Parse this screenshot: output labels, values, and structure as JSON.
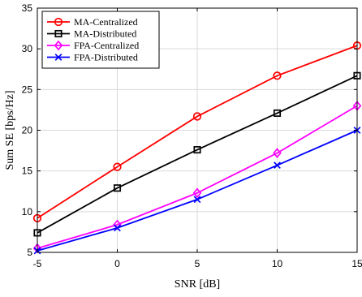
{
  "chart_data": {
    "type": "line",
    "title": "",
    "xlabel": "SNR [dB]",
    "ylabel": "Sum SE [bps/Hz]",
    "x": [
      -5,
      0,
      5,
      10,
      15
    ],
    "x_ticks": [
      -5,
      0,
      5,
      10,
      15
    ],
    "y_ticks": [
      5,
      10,
      15,
      20,
      25,
      30,
      35
    ],
    "xlim": [
      -5,
      15
    ],
    "ylim": [
      5,
      35
    ],
    "grid": true,
    "legend_position": "top-left",
    "series": [
      {
        "name": "MA-Centralized",
        "color": "#ff0000",
        "marker": "circle",
        "values": [
          9.2,
          15.5,
          21.7,
          26.7,
          30.4
        ]
      },
      {
        "name": "MA-Distributed",
        "color": "#000000",
        "marker": "square",
        "values": [
          7.4,
          12.9,
          17.6,
          22.1,
          26.7
        ]
      },
      {
        "name": "FPA-Centralized",
        "color": "#ff00ff",
        "marker": "diamond",
        "values": [
          5.5,
          8.4,
          12.3,
          17.2,
          23.0
        ]
      },
      {
        "name": "FPA-Distributed",
        "color": "#0000ff",
        "marker": "x",
        "values": [
          5.2,
          8.0,
          11.5,
          15.7,
          20.0
        ]
      }
    ]
  }
}
